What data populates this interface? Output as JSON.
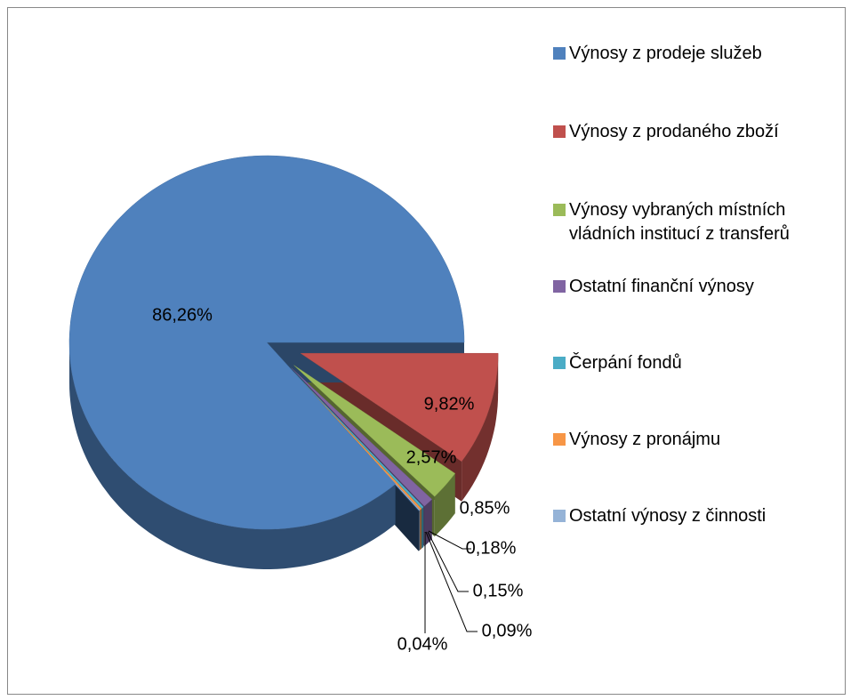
{
  "chart_data": {
    "type": "pie",
    "categories": [
      "Výnosy z prodeje služeb",
      "Výnosy z prodaného zboží",
      "Výnosy vybraných místních vládních institucí z transferů",
      "Ostatní finanční výnosy",
      "Čerpání fondů",
      "Výnosy z pronájmu",
      "Ostatní výnosy z činnosti",
      null
    ],
    "values": [
      86.26,
      9.82,
      2.57,
      0.85,
      0.18,
      0.15,
      0.09,
      0.04
    ],
    "value_labels": [
      "86,26%",
      "9,82%",
      "2,57%",
      "0,85%",
      "0,18%",
      "0,15%",
      "0,09%",
      "0,04%"
    ],
    "colors": [
      "#4f81bd",
      "#c0504d",
      "#9bbb59",
      "#8064a2",
      "#4bacc6",
      "#f79646",
      "#95b3d7",
      "#2c4d75"
    ],
    "legend": "right"
  }
}
